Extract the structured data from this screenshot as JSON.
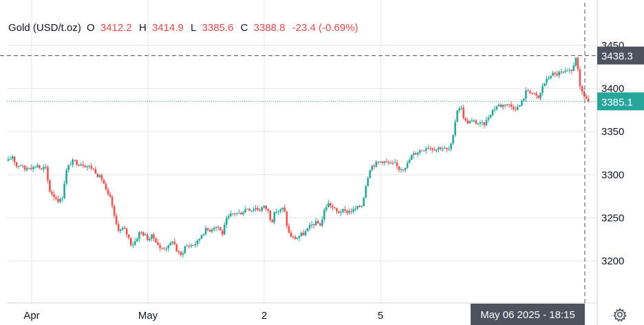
{
  "legend": {
    "title": "Gold (USD/t.oz)",
    "open_label": "O",
    "open": "3412.2",
    "high_label": "H",
    "high": "3414.9",
    "low_label": "L",
    "low": "3385.6",
    "close_label": "C",
    "close": "3388.8",
    "change": "-23.4 (-0.69%)"
  },
  "crosshair": {
    "price_label": "3438.3",
    "time_label": "May 06 2025 - 18:15"
  },
  "last_price_label": "3385.1",
  "colors": {
    "up": "#26a69a",
    "down": "#ef5350",
    "last_price": "#26a69a",
    "crosshair_label_bg": "#4c525e",
    "grid": "#e6e6e6",
    "axis_text": "#131722"
  },
  "chart_data": {
    "type": "candlestick",
    "title": "Gold (USD/t.oz)",
    "ylim": [
      3160,
      3470
    ],
    "y_ticks": [
      3200,
      3250,
      3300,
      3350,
      3400,
      3450
    ],
    "x_ticks": [
      "Apr",
      "May",
      "2",
      "5"
    ],
    "grid": true,
    "crosshair_price": 3438.3,
    "last_price": 3385.1,
    "series_path": [
      3316,
      3322,
      3310,
      3312,
      3306,
      3310,
      3308,
      3312,
      3305,
      3310,
      3282,
      3276,
      3271,
      3270,
      3303,
      3313,
      3316,
      3313,
      3313,
      3310,
      3309,
      3305,
      3298,
      3294,
      3277,
      3271,
      3245,
      3235,
      3238,
      3230,
      3218,
      3224,
      3234,
      3231,
      3225,
      3229,
      3223,
      3213,
      3216,
      3216,
      3225,
      3211,
      3206,
      3217,
      3218,
      3219,
      3222,
      3231,
      3236,
      3236,
      3240,
      3240,
      3231,
      3247,
      3253,
      3256,
      3255,
      3257,
      3262,
      3259,
      3262,
      3259,
      3263,
      3260,
      3245,
      3258,
      3258,
      3262,
      3234,
      3227,
      3226,
      3230,
      3232,
      3238,
      3243,
      3244,
      3242,
      3262,
      3267,
      3261,
      3256,
      3258,
      3257,
      3258,
      3259,
      3262,
      3265,
      3290,
      3309,
      3312,
      3315,
      3316,
      3314,
      3312,
      3312,
      3307,
      3308,
      3312,
      3322,
      3325,
      3328,
      3330,
      3333,
      3331,
      3330,
      3332,
      3330,
      3328,
      3338,
      3375,
      3380,
      3362,
      3361,
      3362,
      3360,
      3358,
      3360,
      3370,
      3376,
      3381,
      3380,
      3383,
      3380,
      3378,
      3378,
      3386,
      3398,
      3397,
      3392,
      3388,
      3405,
      3410,
      3417,
      3416,
      3418,
      3418,
      3419,
      3420,
      3438,
      3400,
      3392,
      3385
    ]
  }
}
